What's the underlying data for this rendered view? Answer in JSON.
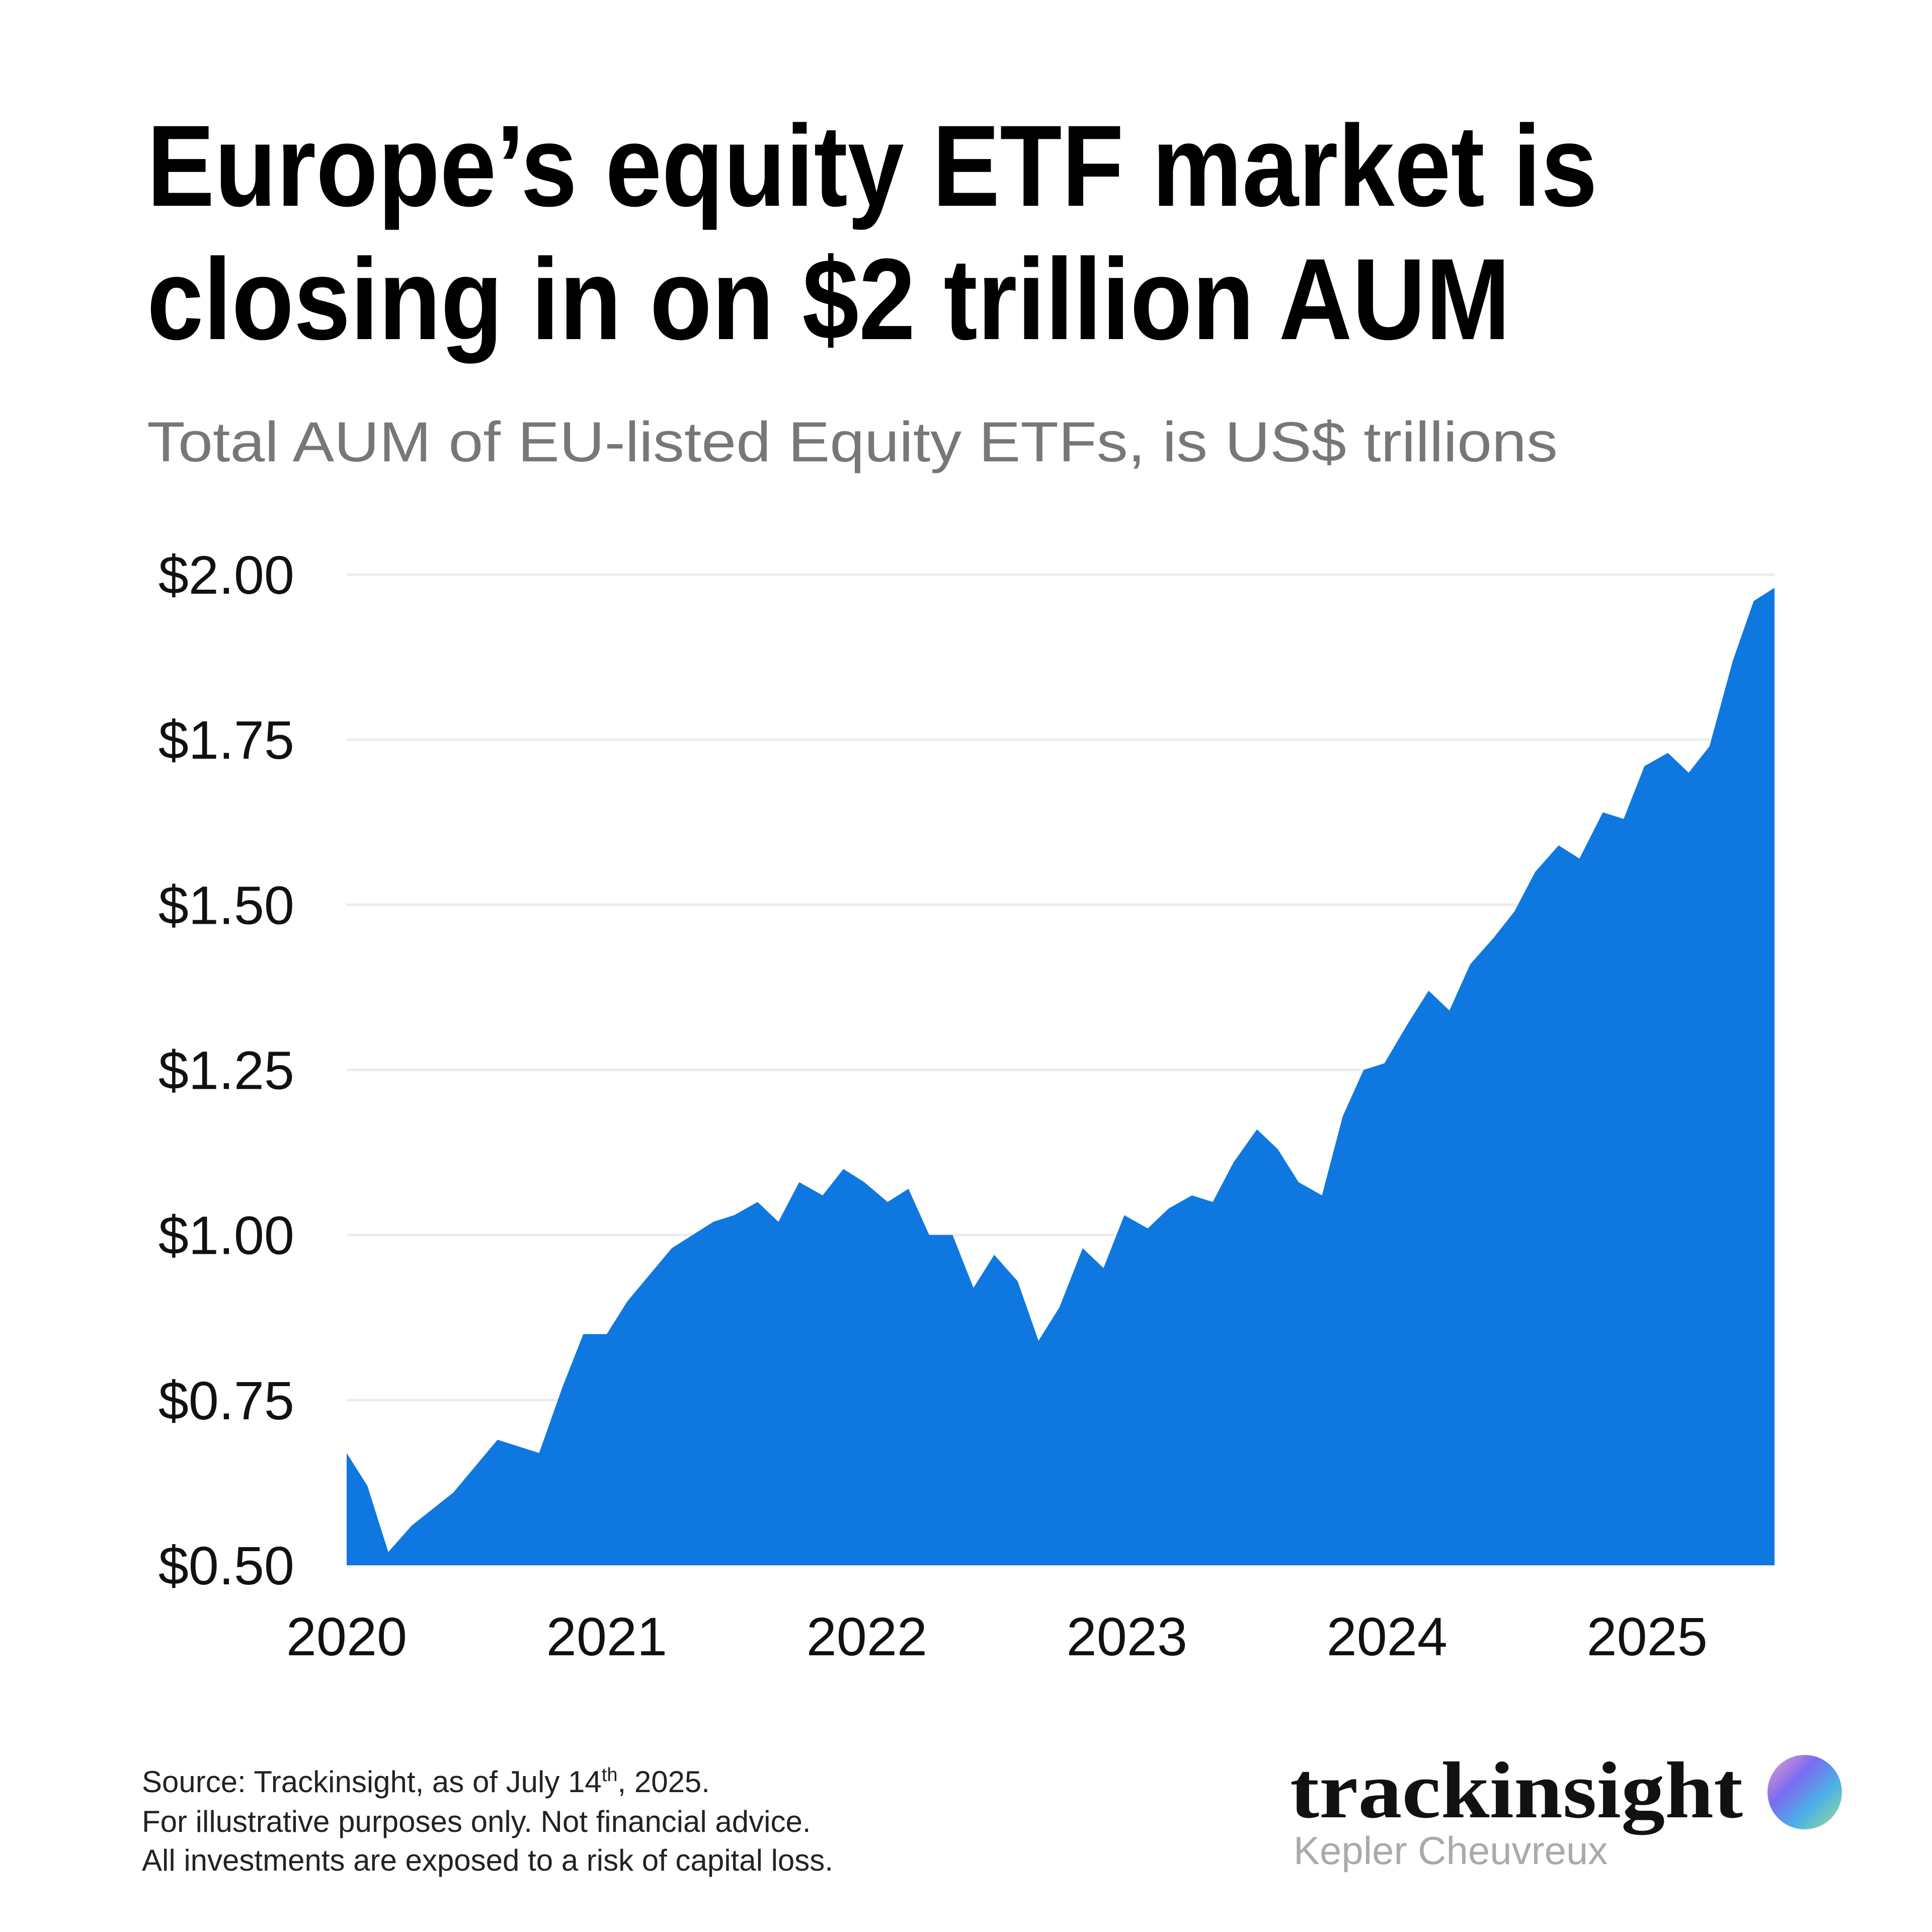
{
  "chart_data": {
    "type": "area",
    "title": [
      "Europe’s equity ETF market is",
      "closing in on $2 trillion AUM"
    ],
    "subtitle": "Total AUM of EU-listed Equity ETFs, is US$ trillions",
    "color": "#0f78e0",
    "grid": true,
    "x": [
      2020.0,
      2020.08,
      2020.16,
      2020.25,
      2020.41,
      2020.58,
      2020.74,
      2020.83,
      2020.91,
      2021.0,
      2021.08,
      2021.25,
      2021.41,
      2021.49,
      2021.58,
      2021.66,
      2021.74,
      2021.83,
      2021.91,
      2021.99,
      2022.08,
      2022.16,
      2022.24,
      2022.33,
      2022.41,
      2022.49,
      2022.58,
      2022.66,
      2022.74,
      2022.83,
      2022.91,
      2022.99,
      2023.08,
      2023.16,
      2023.25,
      2023.33,
      2023.41,
      2023.5,
      2023.58,
      2023.66,
      2023.75,
      2023.83,
      2023.91,
      2023.99,
      2024.08,
      2024.16,
      2024.24,
      2024.32,
      2024.41,
      2024.49,
      2024.57,
      2024.66,
      2024.74,
      2024.83,
      2024.91,
      2024.99,
      2025.08,
      2025.16,
      2025.24,
      2025.33,
      2025.41,
      2025.49
    ],
    "values": [
      0.67,
      0.62,
      0.52,
      0.56,
      0.61,
      0.69,
      0.67,
      0.77,
      0.85,
      0.85,
      0.9,
      0.98,
      1.02,
      1.03,
      1.05,
      1.02,
      1.08,
      1.06,
      1.1,
      1.08,
      1.05,
      1.07,
      1.0,
      1.0,
      0.92,
      0.97,
      0.93,
      0.84,
      0.89,
      0.98,
      0.95,
      1.03,
      1.01,
      1.04,
      1.06,
      1.05,
      1.11,
      1.16,
      1.13,
      1.08,
      1.06,
      1.18,
      1.25,
      1.26,
      1.32,
      1.37,
      1.34,
      1.41,
      1.45,
      1.49,
      1.55,
      1.59,
      1.57,
      1.64,
      1.63,
      1.71,
      1.73,
      1.7,
      1.74,
      1.87,
      1.96,
      1.98
    ],
    "xlim": [
      2020,
      2025.49
    ],
    "xticks": [
      2020,
      2021,
      2022,
      2023,
      2024,
      2025
    ],
    "ylim": [
      0.5,
      2.0
    ],
    "yticks": [
      {
        "value": 0.5,
        "label": "$0.50"
      },
      {
        "value": 0.75,
        "label": "$0.75"
      },
      {
        "value": 1.0,
        "label": "$1.00"
      },
      {
        "value": 1.25,
        "label": "$1.25"
      },
      {
        "value": 1.5,
        "label": "$1.50"
      },
      {
        "value": 1.75,
        "label": "$1.75"
      },
      {
        "value": 2.0,
        "label": "$2.00"
      }
    ]
  },
  "footer": {
    "source": [
      "Source: Trackinsight, as of July 14",
      "th",
      ", 2025."
    ],
    "lines": [
      "For illustrative purposes only. Not financial advice.",
      "All investments are exposed to a risk of capital loss."
    ]
  },
  "brand": {
    "name": "trackinsight",
    "sub": "Kepler Cheuvreux"
  }
}
